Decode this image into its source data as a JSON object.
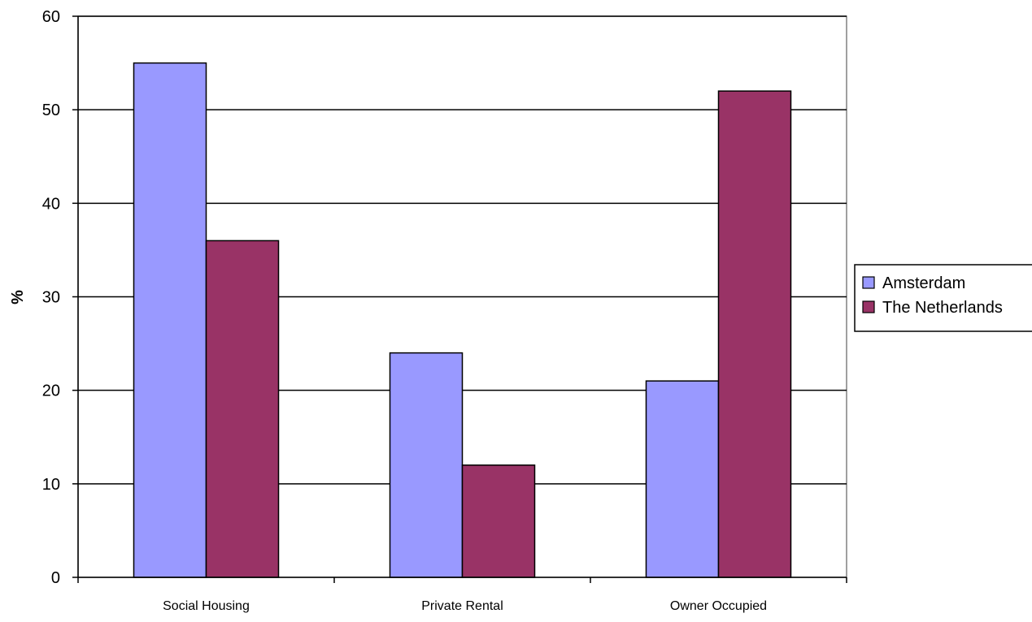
{
  "chart_data": {
    "type": "bar",
    "title": "",
    "xlabel": "",
    "ylabel": "%",
    "ylim": [
      0,
      60
    ],
    "yticks": [
      0,
      10,
      20,
      30,
      40,
      50,
      60
    ],
    "categories": [
      "Social Housing",
      "Private Rental",
      "Owner Occupied"
    ],
    "series": [
      {
        "name": "Amsterdam",
        "values": [
          55,
          24,
          21
        ],
        "color": "#9999ff"
      },
      {
        "name": "The Netherlands",
        "values": [
          36,
          12,
          52
        ],
        "color": "#993366"
      }
    ],
    "grid": true,
    "legend": "right"
  }
}
